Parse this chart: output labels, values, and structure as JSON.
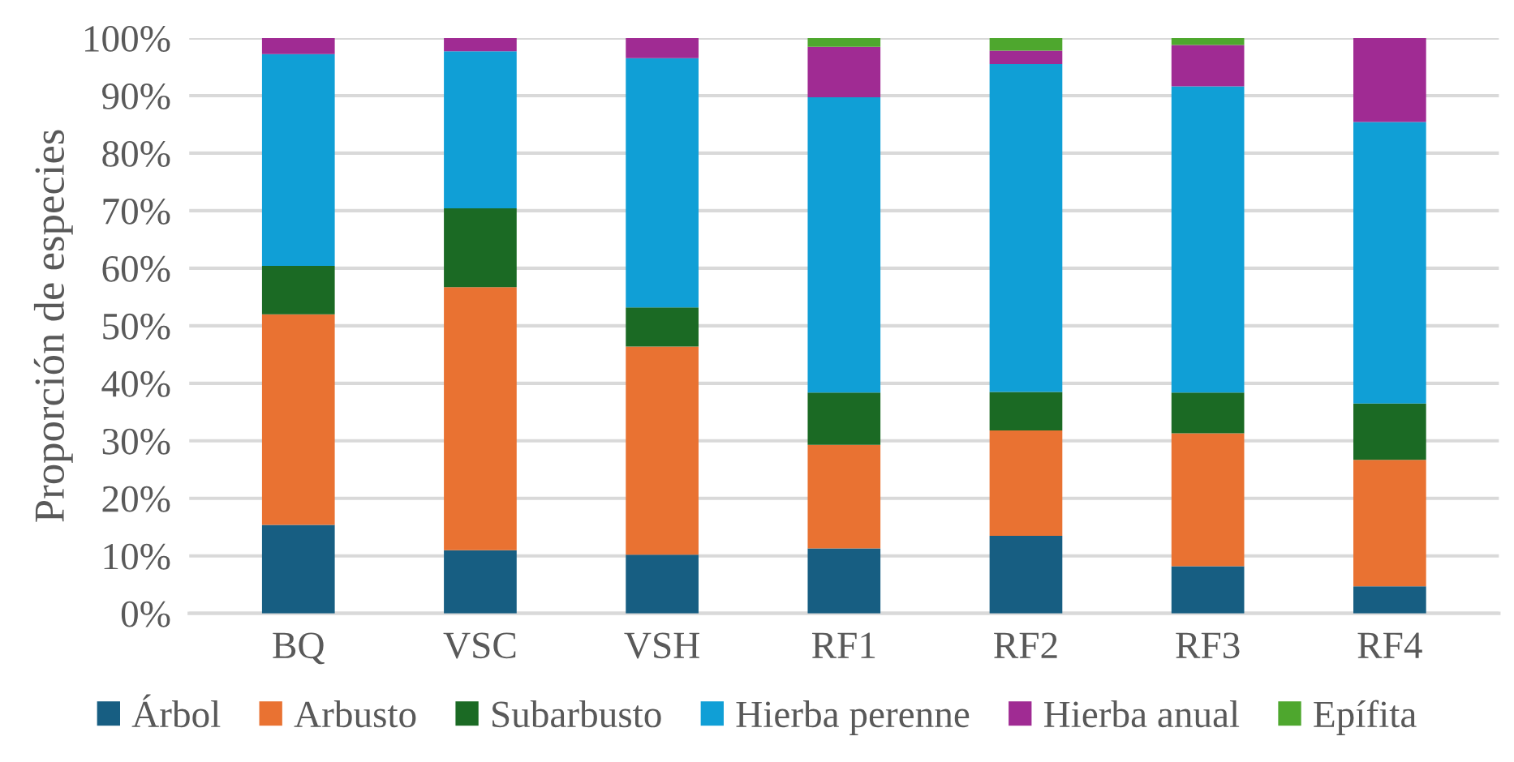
{
  "chart_data": {
    "type": "bar",
    "stacked": true,
    "ylabel": "Proporción de especies",
    "categories": [
      "BQ",
      "VSC",
      "VSH",
      "RF1",
      "RF2",
      "RF3",
      "RF4"
    ],
    "series": [
      {
        "name": "Árbol",
        "color": "#175e82",
        "values": [
          15.4,
          11.0,
          10.2,
          11.3,
          13.5,
          8.2,
          4.7
        ]
      },
      {
        "name": "Arbusto",
        "color": "#e97232",
        "values": [
          36.6,
          45.7,
          36.2,
          18.0,
          18.3,
          23.1,
          22.0
        ]
      },
      {
        "name": "Subarbusto",
        "color": "#1b6a24",
        "values": [
          8.4,
          13.7,
          6.8,
          9.1,
          6.7,
          7.1,
          9.8
        ]
      },
      {
        "name": "Hierba perenne",
        "color": "#109fd6",
        "values": [
          36.8,
          27.3,
          43.3,
          51.3,
          57.0,
          53.2,
          48.9
        ]
      },
      {
        "name": "Hierba anual",
        "color": "#a02b93",
        "values": [
          2.8,
          2.3,
          3.5,
          8.8,
          2.3,
          7.2,
          14.6
        ]
      },
      {
        "name": "Epífita",
        "color": "#4ea72e",
        "values": [
          0,
          0,
          0,
          1.5,
          2.2,
          1.2,
          0
        ]
      }
    ],
    "ylim": [
      0,
      100
    ],
    "yticks": [
      {
        "value": 0,
        "label": "0%"
      },
      {
        "value": 10,
        "label": "10%"
      },
      {
        "value": 20,
        "label": "20%"
      },
      {
        "value": 30,
        "label": "30%"
      },
      {
        "value": 40,
        "label": "40%"
      },
      {
        "value": 50,
        "label": "50%"
      },
      {
        "value": 60,
        "label": "60%"
      },
      {
        "value": 70,
        "label": "70%"
      },
      {
        "value": 80,
        "label": "80%"
      },
      {
        "value": 90,
        "label": "90%"
      },
      {
        "value": 100,
        "label": "100%"
      }
    ],
    "grid": "y",
    "legend": "bottom"
  }
}
